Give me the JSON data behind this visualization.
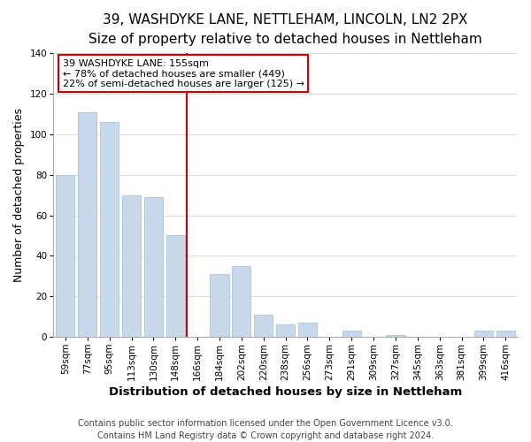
{
  "title": "39, WASHDYKE LANE, NETTLEHAM, LINCOLN, LN2 2PX",
  "subtitle": "Size of property relative to detached houses in Nettleham",
  "xlabel": "Distribution of detached houses by size in Nettleham",
  "ylabel": "Number of detached properties",
  "bar_labels": [
    "59sqm",
    "77sqm",
    "95sqm",
    "113sqm",
    "130sqm",
    "148sqm",
    "166sqm",
    "184sqm",
    "202sqm",
    "220sqm",
    "238sqm",
    "256sqm",
    "273sqm",
    "291sqm",
    "309sqm",
    "327sqm",
    "345sqm",
    "363sqm",
    "381sqm",
    "399sqm",
    "416sqm"
  ],
  "bar_values": [
    80,
    111,
    106,
    70,
    69,
    50,
    0,
    31,
    35,
    11,
    6,
    7,
    0,
    3,
    0,
    1,
    0,
    0,
    0,
    3,
    3
  ],
  "bar_color": "#c9d9ec",
  "bar_edge_color": "#a8c4dc",
  "vline_x": 5.5,
  "vline_color": "#cc0000",
  "annotation_title": "39 WASHDYKE LANE: 155sqm",
  "annotation_line1": "← 78% of detached houses are smaller (449)",
  "annotation_line2": "22% of semi-detached houses are larger (125) →",
  "annotation_box_color": "#ffffff",
  "annotation_box_edge_color": "#cc0000",
  "ylim": [
    0,
    140
  ],
  "yticks": [
    0,
    20,
    40,
    60,
    80,
    100,
    120,
    140
  ],
  "footer1": "Contains HM Land Registry data © Crown copyright and database right 2024.",
  "footer2": "Contains public sector information licensed under the Open Government Licence v3.0.",
  "background_color": "#ffffff",
  "grid_color": "#d8d8d8",
  "title_fontsize": 11,
  "subtitle_fontsize": 9.5,
  "axis_label_fontsize": 9,
  "tick_fontsize": 7.5,
  "footer_fontsize": 7,
  "xlabel_fontsize": 9.5
}
